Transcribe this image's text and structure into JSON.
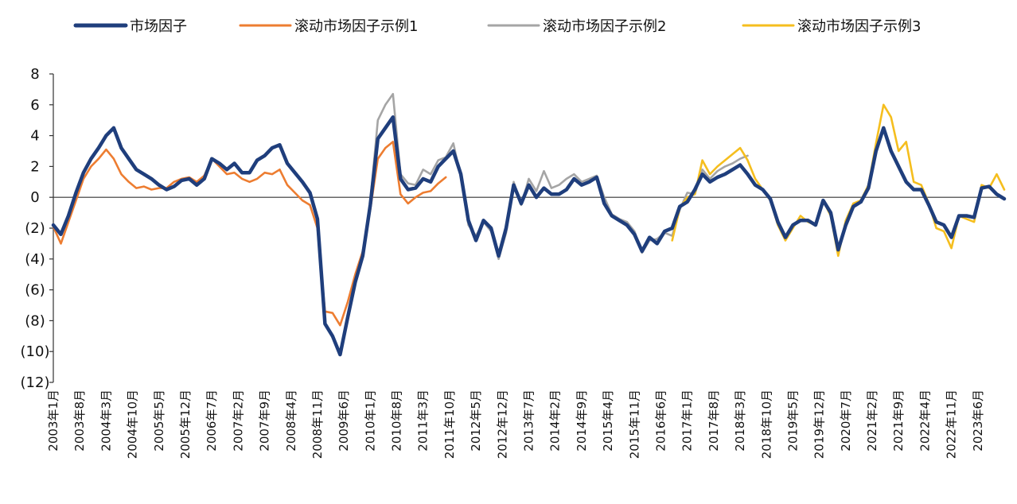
{
  "chart_data": {
    "type": "line",
    "title": "",
    "xlabel": "",
    "ylabel": "",
    "ylim": [
      -12,
      8
    ],
    "y_ticks": [
      8,
      6,
      4,
      2,
      0,
      -2,
      -4,
      -6,
      -8,
      -10,
      -12
    ],
    "y_tick_labels": [
      "8",
      "6",
      "4",
      "2",
      "0",
      "(2)",
      "(4)",
      "(6)",
      "(8)",
      "(10)",
      "(12)"
    ],
    "x_range": [
      0,
      252
    ],
    "x_tick_labels": [
      "2003年1月",
      "2003年8月",
      "2004年3月",
      "2004年10月",
      "2005年5月",
      "2005年12月",
      "2006年7月",
      "2007年2月",
      "2007年9月",
      "2008年4月",
      "2008年11月",
      "2009年6月",
      "2010年1月",
      "2010年8月",
      "2011年3月",
      "2011年10月",
      "2012年5月",
      "2012年12月",
      "2013年7月",
      "2014年2月",
      "2014年9月",
      "2015年4月",
      "2015年11月",
      "2016年6月",
      "2017年1月",
      "2017年8月",
      "2018年3月",
      "2018年10月",
      "2019年5月",
      "2019年12月",
      "2020年7月",
      "2021年2月",
      "2021年9月",
      "2022年4月",
      "2022年11月",
      "2023年6月"
    ],
    "x_tick_step_months": 7,
    "legend_position": "top",
    "series": [
      {
        "name": "市场因子",
        "color": "#1F3E7C",
        "x": [
          0,
          2,
          4,
          6,
          8,
          10,
          12,
          14,
          16,
          18,
          20,
          22,
          24,
          26,
          28,
          30,
          32,
          34,
          36,
          38,
          40,
          42,
          44,
          46,
          48,
          50,
          52,
          54,
          56,
          58,
          60,
          62,
          64,
          66,
          68,
          70,
          72,
          74,
          76,
          78,
          80,
          82,
          84,
          86,
          88,
          90,
          92,
          94,
          96,
          98,
          100,
          102,
          104,
          106,
          108,
          110,
          112,
          114,
          116,
          118,
          120,
          122,
          124,
          126,
          128,
          130,
          132,
          134,
          136,
          138,
          140,
          142,
          144,
          146,
          148,
          150,
          152,
          154,
          156,
          158,
          160,
          162,
          164,
          166,
          168,
          170,
          172,
          174,
          176,
          178,
          180,
          182,
          184,
          186,
          188,
          190,
          192,
          194,
          196,
          198,
          200,
          202,
          204,
          206,
          208,
          210,
          212,
          214,
          216,
          218,
          220,
          222,
          224,
          226,
          228,
          230,
          232,
          234,
          236,
          238,
          240,
          242,
          244,
          246,
          248,
          250,
          252
        ],
        "y": [
          -1.8,
          -2.4,
          -1.2,
          0.3,
          1.6,
          2.5,
          3.2,
          4.0,
          4.5,
          3.2,
          2.5,
          1.8,
          1.5,
          1.2,
          0.8,
          0.5,
          0.7,
          1.1,
          1.2,
          0.8,
          1.2,
          2.5,
          2.2,
          1.8,
          2.2,
          1.6,
          1.6,
          2.4,
          2.7,
          3.2,
          3.4,
          2.2,
          1.6,
          1.0,
          0.3,
          -1.4,
          -8.2,
          -9.0,
          -10.2,
          -7.8,
          -5.5,
          -3.8,
          -0.5,
          3.8,
          4.5,
          5.2,
          1.2,
          0.5,
          0.6,
          1.2,
          1.0,
          2.0,
          2.5,
          3.0,
          1.5,
          -1.5,
          -2.8,
          -1.5,
          -2.0,
          -3.8,
          -2.0,
          0.8,
          -0.4,
          0.8,
          0.0,
          0.6,
          0.2,
          0.2,
          0.5,
          1.2,
          0.8,
          1.0,
          1.3,
          -0.4,
          -1.2,
          -1.5,
          -1.8,
          -2.4,
          -3.5,
          -2.6,
          -3.0,
          -2.2,
          -2.0,
          -0.6,
          -0.3,
          0.5,
          1.5,
          1.0,
          1.3,
          1.5,
          1.8,
          2.1,
          1.5,
          0.8,
          0.5,
          -0.1,
          -1.6,
          -2.6,
          -1.8,
          -1.5,
          -1.5,
          -1.8,
          -0.2,
          -1.0,
          -3.4,
          -1.8,
          -0.6,
          -0.3,
          0.6,
          3.0,
          4.5,
          3.0,
          2.0,
          1.0,
          0.5,
          0.5,
          -0.5,
          -1.6,
          -1.8,
          -2.6,
          -1.2,
          -1.2,
          -1.3,
          0.6,
          0.7,
          0.2,
          -0.1
        ]
      },
      {
        "name": "滚动市场因子示例1",
        "color": "#ED7D31",
        "x": [
          0,
          2,
          4,
          6,
          8,
          10,
          12,
          14,
          16,
          18,
          20,
          22,
          24,
          26,
          28,
          30,
          32,
          34,
          36,
          38,
          40,
          42,
          44,
          46,
          48,
          50,
          52,
          54,
          56,
          58,
          60,
          62,
          64,
          66,
          68,
          70,
          72,
          74,
          76,
          78,
          80,
          82,
          84,
          86,
          88,
          90,
          92,
          94,
          96,
          98,
          100,
          102,
          104
        ],
        "y": [
          -1.9,
          -3.0,
          -1.6,
          -0.2,
          1.2,
          2.0,
          2.5,
          3.1,
          2.5,
          1.5,
          1.0,
          0.6,
          0.7,
          0.5,
          0.6,
          0.6,
          1.0,
          1.2,
          1.3,
          1.0,
          1.4,
          2.5,
          2.0,
          1.5,
          1.6,
          1.2,
          1.0,
          1.2,
          1.6,
          1.5,
          1.8,
          0.8,
          0.3,
          -0.2,
          -0.5,
          -2.0,
          -7.4,
          -7.5,
          -8.3,
          -6.8,
          -5.0,
          -3.5,
          -0.8,
          2.5,
          3.2,
          3.6,
          0.2,
          -0.4,
          0.0,
          0.3,
          0.4,
          0.9,
          1.3
        ]
      },
      {
        "name": "滚动市场因子示例2",
        "color": "#A5A5A5",
        "x": [
          84,
          86,
          88,
          90,
          92,
          94,
          96,
          98,
          100,
          102,
          104,
          106,
          108,
          110,
          112,
          114,
          116,
          118,
          120,
          122,
          124,
          126,
          128,
          130,
          132,
          134,
          136,
          138,
          140,
          142,
          144,
          146,
          148,
          150,
          152,
          154,
          156,
          158,
          160,
          162,
          164,
          166,
          168,
          170,
          172,
          174,
          176,
          178,
          180,
          182,
          184
        ],
        "y": [
          -0.3,
          5.0,
          6.0,
          6.7,
          1.5,
          0.9,
          0.8,
          1.8,
          1.5,
          2.4,
          2.6,
          3.5,
          1.3,
          -1.8,
          -2.5,
          -1.6,
          -2.2,
          -4.0,
          -2.3,
          1.0,
          -0.5,
          1.2,
          0.4,
          1.7,
          0.6,
          0.8,
          1.2,
          1.5,
          1.0,
          1.2,
          1.4,
          0.0,
          -1.1,
          -1.4,
          -1.6,
          -2.2,
          -3.6,
          -2.8,
          -2.7,
          -2.3,
          -2.5,
          -0.8,
          0.3,
          0.2,
          1.8,
          1.2,
          1.7,
          2.0,
          2.2,
          2.5,
          2.7
        ]
      },
      {
        "name": "滚动市场因子示例3",
        "color": "#F5BE1E",
        "x": [
          164,
          166,
          168,
          170,
          172,
          174,
          176,
          178,
          180,
          182,
          184,
          186,
          188,
          190,
          192,
          194,
          196,
          198,
          200,
          202,
          204,
          206,
          208,
          210,
          212,
          214,
          216,
          218,
          220,
          222,
          224,
          226,
          228,
          230,
          232,
          234,
          236,
          238,
          240,
          242,
          244,
          246,
          248,
          250,
          252
        ],
        "y": [
          -2.8,
          -0.7,
          0.0,
          0.2,
          2.4,
          1.5,
          2.0,
          2.4,
          2.8,
          3.2,
          2.4,
          1.2,
          0.5,
          -0.2,
          -1.8,
          -2.8,
          -2.0,
          -1.2,
          -1.6,
          -1.8,
          -0.2,
          -1.2,
          -3.8,
          -1.5,
          -0.4,
          -0.2,
          0.8,
          3.5,
          6.0,
          5.2,
          3.0,
          3.6,
          1.0,
          0.8,
          -0.4,
          -2.0,
          -2.2,
          -3.3,
          -1.2,
          -1.4,
          -1.6,
          0.8,
          0.6,
          1.5,
          0.5
        ]
      }
    ]
  }
}
